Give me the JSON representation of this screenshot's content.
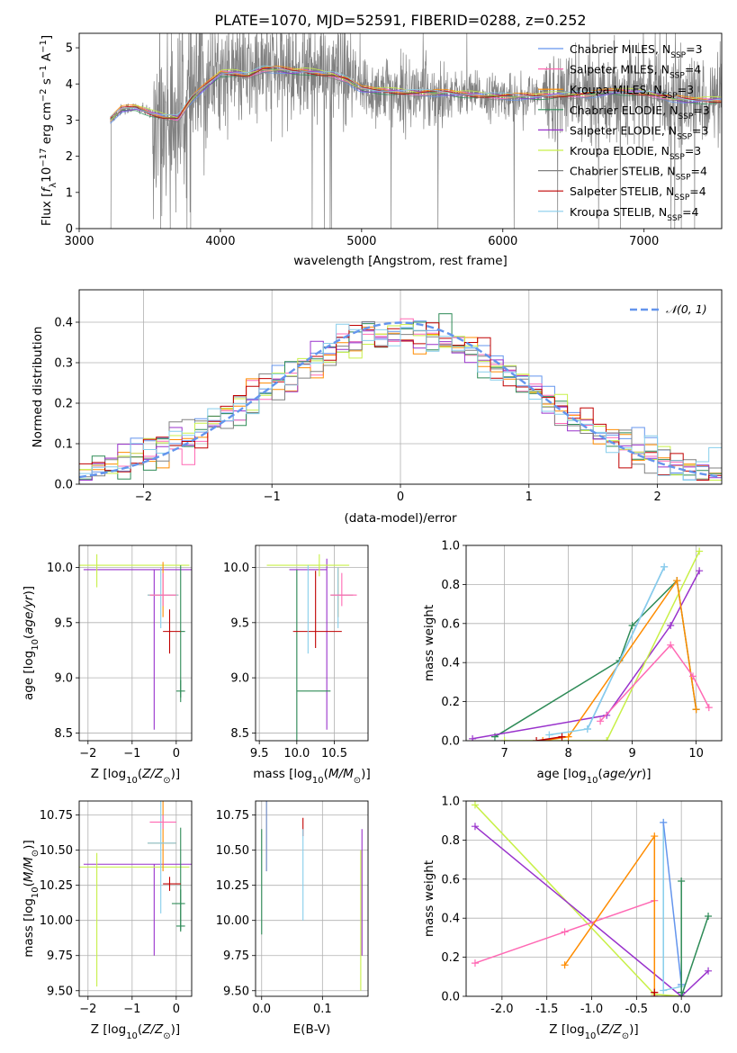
{
  "chart_data": [
    {
      "id": "spectrum",
      "type": "line",
      "title": "PLATE=1070, MJD=52591, FIBERID=0288, z=0.252",
      "xlabel": "wavelength [Angstrom, rest frame]",
      "ylabel": "Flux [f_λ 10^-17 erg cm^-2 s^-1 A^-1]",
      "ylabel_parts": [
        "Flux [",
        "f",
        "λ",
        "10",
        "−17",
        " erg cm",
        "−2",
        " s",
        "−1",
        " A",
        "−1",
        "]"
      ],
      "xlim": [
        3000,
        7550
      ],
      "ylim": [
        0,
        5.4
      ],
      "xticks": [
        3000,
        4000,
        5000,
        6000,
        7000
      ],
      "yticks": [
        0,
        1,
        2,
        3,
        4,
        5
      ],
      "grid": false,
      "legend_position": "right",
      "legend": [
        {
          "name": "Chabrier MILES, N",
          "sub": "SSP",
          "suffix": "=3",
          "color": "#6495ed"
        },
        {
          "name": "Salpeter MILES, N",
          "sub": "SSP",
          "suffix": "=4",
          "color": "#ff69b4"
        },
        {
          "name": "Kroupa MILES, N",
          "sub": "SSP",
          "suffix": "=3",
          "color": "#ff8c00"
        },
        {
          "name": "Chabrier ELODIE, N",
          "sub": "SSP",
          "suffix": "=3",
          "color": "#2e8b57"
        },
        {
          "name": "Salpeter ELODIE, N",
          "sub": "SSP",
          "suffix": "=3",
          "color": "#9932cc"
        },
        {
          "name": "Kroupa ELODIE, N",
          "sub": "SSP",
          "suffix": "=3",
          "color": "#c8f048"
        },
        {
          "name": "Chabrier STELIB, N",
          "sub": "SSP",
          "suffix": "=4",
          "color": "#808080"
        },
        {
          "name": "Salpeter STELIB, N",
          "sub": "SSP",
          "suffix": "=4",
          "color": "#c00000"
        },
        {
          "name": "Kroupa STELIB, N",
          "sub": "SSP",
          "suffix": "=4",
          "color": "#87ceeb"
        }
      ],
      "data_color": "#808080",
      "continuum": {
        "x": [
          3220,
          3300,
          3400,
          3500,
          3600,
          3700,
          3800,
          3900,
          4000,
          4100,
          4200,
          4300,
          4400,
          4500,
          4600,
          4700,
          4800,
          4900,
          5000,
          5200,
          5400,
          5600,
          5800,
          6000,
          6200,
          6400,
          6600,
          6800,
          7000,
          7200,
          7300
        ],
        "y": [
          3.0,
          3.3,
          3.35,
          3.2,
          3.1,
          3.05,
          3.6,
          3.95,
          4.3,
          4.3,
          4.25,
          4.4,
          4.4,
          4.35,
          4.35,
          4.3,
          4.25,
          4.1,
          3.85,
          3.8,
          3.75,
          3.75,
          3.7,
          3.65,
          3.65,
          3.7,
          3.7,
          3.8,
          3.75,
          3.6,
          3.55
        ]
      }
    },
    {
      "id": "residuals",
      "type": "area",
      "xlabel": "(data-model)/error",
      "ylabel": "Normed distribution",
      "xlim": [
        -2.5,
        2.5
      ],
      "ylim": [
        0,
        0.48
      ],
      "xticks": [
        -2,
        -1,
        0,
        1,
        2
      ],
      "yticks": [
        0.0,
        0.1,
        0.2,
        0.3,
        0.4
      ],
      "grid": true,
      "legend_position": "top-right",
      "legend": [
        {
          "name": "𝒩(0, 1)",
          "color": "#6495ed"
        }
      ],
      "bin_width": 0.1,
      "hist_colors": [
        "#6495ed",
        "#ff69b4",
        "#ff8c00",
        "#2e8b57",
        "#9932cc",
        "#c8f048",
        "#808080",
        "#c00000",
        "#87ceeb"
      ]
    },
    {
      "id": "age_vs_Z",
      "type": "scatter",
      "xlabel": "Z [log10(Z/Z⊙)]",
      "ylabel": "age [log10(age/yr)]",
      "xlim": [
        -2.2,
        0.35
      ],
      "ylim": [
        8.43,
        10.2
      ],
      "xticks": [
        -2,
        -1,
        0
      ],
      "yticks": [
        8.5,
        9.0,
        9.5,
        10.0
      ],
      "grid": true,
      "points": [
        {
          "color": "#9932cc",
          "x": -0.5,
          "y": 9.98,
          "xerr": [
            1.6,
            1.1
          ],
          "yerr": [
            1.45,
            0.0
          ]
        },
        {
          "color": "#c8f048",
          "x": -1.8,
          "y": 10.02,
          "xerr": [
            0.5,
            2.1
          ],
          "yerr": [
            0.2,
            0.1
          ]
        },
        {
          "color": "#ff8c00",
          "x": -0.3,
          "y": 9.75,
          "xerr": [
            0.35,
            0.35
          ],
          "yerr": [
            0.2,
            0.3
          ]
        },
        {
          "color": "#87ceeb",
          "x": -0.35,
          "y": 9.75,
          "xerr": [
            0.3,
            0.4
          ],
          "yerr": [
            0.3,
            0.25
          ]
        },
        {
          "color": "#ff69b4",
          "x": -0.3,
          "y": 9.75,
          "xerr": [
            0.3,
            0.3
          ],
          "yerr": [
            0.1,
            0.2
          ]
        },
        {
          "color": "#2e8b57",
          "x": 0.1,
          "y": 8.88,
          "xerr": [
            0.1,
            0.1
          ],
          "yerr": [
            0.1,
            0.1
          ]
        },
        {
          "color": "#2e8b57",
          "x": 0.1,
          "y": 9.42,
          "xerr": [
            0.0,
            0.1
          ],
          "yerr": [
            0.6,
            0.6
          ]
        },
        {
          "color": "#c00000",
          "x": -0.15,
          "y": 9.42,
          "xerr": [
            0.15,
            0.25
          ],
          "yerr": [
            0.2,
            0.2
          ]
        }
      ]
    },
    {
      "id": "age_vs_mass",
      "type": "scatter",
      "xlabel": "mass [log10(M/M⊙)]",
      "xlim": [
        9.45,
        10.95
      ],
      "ylim": [
        8.43,
        10.2
      ],
      "xticks": [
        9.5,
        10.0,
        10.5
      ],
      "yticks": [
        8.5,
        9.0,
        9.5,
        10.0
      ],
      "grid": true,
      "points": [
        {
          "color": "#9932cc",
          "x": 10.4,
          "y": 9.98,
          "xerr": [
            0.5,
            0.0
          ],
          "yerr": [
            1.45,
            0.1
          ]
        },
        {
          "color": "#c8f048",
          "x": 10.3,
          "y": 10.02,
          "xerr": [
            0.7,
            0.4
          ],
          "yerr": [
            0.1,
            0.1
          ]
        },
        {
          "color": "#ff8c00",
          "x": 10.55,
          "y": 9.75,
          "xerr": [
            0.1,
            0.2
          ],
          "yerr": [
            0.2,
            0.25
          ]
        },
        {
          "color": "#87ceeb",
          "x": 10.55,
          "y": 9.75,
          "xerr": [
            0.1,
            0.2
          ],
          "yerr": [
            0.3,
            0.25
          ]
        },
        {
          "color": "#ff69b4",
          "x": 10.6,
          "y": 9.75,
          "xerr": [
            0.15,
            0.2
          ],
          "yerr": [
            0.1,
            0.2
          ]
        },
        {
          "color": "#2e8b57",
          "x": 10.0,
          "y": 8.88,
          "xerr": [
            0.0,
            0.45
          ],
          "yerr": [
            0.6,
            1.1
          ]
        },
        {
          "color": "#c00000",
          "x": 10.25,
          "y": 9.42,
          "xerr": [
            0.3,
            0.35
          ],
          "yerr": [
            0.15,
            0.55
          ]
        },
        {
          "color": "#87ceeb",
          "x": 10.15,
          "y": 9.42,
          "xerr": [
            0.0,
            0.0
          ],
          "yerr": [
            0.2,
            0.6
          ]
        }
      ]
    },
    {
      "id": "weight_vs_age",
      "type": "line",
      "xlabel": "age [log10(age/yr)]",
      "ylabel": "mass weight",
      "xlim": [
        6.4,
        10.4
      ],
      "ylim": [
        0,
        1
      ],
      "xticks": [
        7,
        8,
        9,
        10
      ],
      "yticks": [
        0.0,
        0.2,
        0.4,
        0.6,
        0.8,
        1.0
      ],
      "grid": true,
      "series": [
        {
          "color": "#2e8b57",
          "x": [
            6.85,
            8.8,
            9.0,
            9.7,
            10.0
          ],
          "y": [
            0.02,
            0.41,
            0.59,
            0.82,
            0.16
          ]
        },
        {
          "color": "#9932cc",
          "x": [
            6.5,
            8.6,
            9.6,
            10.05
          ],
          "y": [
            0.01,
            0.13,
            0.59,
            0.87
          ]
        },
        {
          "color": "#c8f048",
          "x": [
            7.0,
            8.6,
            10.05
          ],
          "y": [
            0.0,
            0.0,
            0.97
          ]
        },
        {
          "color": "#ff8c00",
          "x": [
            7.6,
            8.0,
            9.7,
            10.0
          ],
          "y": [
            0.0,
            0.02,
            0.82,
            0.16
          ]
        },
        {
          "color": "#6495ed",
          "x": [
            8.3,
            9.5
          ],
          "y": [
            0.06,
            0.89
          ]
        },
        {
          "color": "#87ceeb",
          "x": [
            7.7,
            8.3,
            9.5
          ],
          "y": [
            0.03,
            0.06,
            0.89
          ]
        },
        {
          "color": "#c00000",
          "x": [
            7.5,
            7.9
          ],
          "y": [
            0.0,
            0.02
          ]
        },
        {
          "color": "#ff69b4",
          "x": [
            8.5,
            9.6,
            9.95,
            10.2
          ],
          "y": [
            0.1,
            0.49,
            0.33,
            0.17
          ]
        }
      ]
    },
    {
      "id": "mass_vs_Z",
      "type": "scatter",
      "xlabel": "Z [log10(Z/Z⊙)]",
      "ylabel": "mass [log10(M/M⊙)]",
      "xlim": [
        -2.2,
        0.35
      ],
      "ylim": [
        9.46,
        10.85
      ],
      "xticks": [
        -2,
        -1,
        0
      ],
      "yticks": [
        9.5,
        9.75,
        10.0,
        10.25,
        10.5,
        10.75
      ],
      "grid": true,
      "points": [
        {
          "color": "#9932cc",
          "x": -0.5,
          "y": 10.4,
          "xerr": [
            1.6,
            1.0
          ],
          "yerr": [
            0.65,
            0.0
          ]
        },
        {
          "color": "#c8f048",
          "x": -1.8,
          "y": 10.38,
          "xerr": [
            0.5,
            2.1
          ],
          "yerr": [
            0.85,
            0.1
          ]
        },
        {
          "color": "#ff8c00",
          "x": -0.3,
          "y": 10.55,
          "xerr": [
            0.35,
            0.3
          ],
          "yerr": [
            0.2,
            0.3
          ]
        },
        {
          "color": "#87ceeb",
          "x": -0.35,
          "y": 10.55,
          "xerr": [
            0.3,
            0.35
          ],
          "yerr": [
            0.5,
            0.3
          ]
        },
        {
          "color": "#ff69b4",
          "x": -0.3,
          "y": 10.7,
          "xerr": [
            0.3,
            0.3
          ],
          "yerr": [
            0.05,
            0.05
          ]
        },
        {
          "color": "#2e8b57",
          "x": 0.1,
          "y": 10.12,
          "xerr": [
            0.2,
            0.1
          ],
          "yerr": [
            0.2,
            0.1
          ]
        },
        {
          "color": "#2e8b57",
          "x": 0.1,
          "y": 9.96,
          "xerr": [
            0.1,
            0.1
          ],
          "yerr": [
            0.03,
            0.7
          ]
        },
        {
          "color": "#c00000",
          "x": -0.15,
          "y": 10.26,
          "xerr": [
            0.15,
            0.25
          ],
          "yerr": [
            0.05,
            0.05
          ]
        }
      ]
    },
    {
      "id": "mass_vs_ebv",
      "type": "scatter",
      "xlabel": "E(B-V)",
      "xlim": [
        -0.01,
        0.175
      ],
      "ylim": [
        9.46,
        10.85
      ],
      "xticks": [
        0.0,
        0.1
      ],
      "yticks": [
        9.5,
        9.75,
        10.0,
        10.25,
        10.5,
        10.75
      ],
      "grid": true,
      "points": [
        {
          "color": "#2e8b57",
          "x": 0.0,
          "y": 10.4,
          "xerr": [
            0,
            0
          ],
          "yerr": [
            0.5,
            0.25
          ]
        },
        {
          "color": "#ff8c00",
          "x": 0.008,
          "y": 10.55,
          "xerr": [
            0,
            0
          ],
          "yerr": [
            0.2,
            0.3
          ]
        },
        {
          "color": "#6495ed",
          "x": 0.008,
          "y": 10.6,
          "xerr": [
            0,
            0
          ],
          "yerr": [
            0.25,
            0.25
          ]
        },
        {
          "color": "#c00000",
          "x": 0.068,
          "y": 10.65,
          "xerr": [
            0,
            0
          ],
          "yerr": [
            0.05,
            0.08
          ]
        },
        {
          "color": "#87ceeb",
          "x": 0.068,
          "y": 10.3,
          "xerr": [
            0,
            0
          ],
          "yerr": [
            0.3,
            0.35
          ]
        },
        {
          "color": "#9932cc",
          "x": 0.165,
          "y": 10.2,
          "xerr": [
            0,
            0
          ],
          "yerr": [
            0.45,
            0.45
          ]
        },
        {
          "color": "#c8f048",
          "x": 0.163,
          "y": 10.0,
          "xerr": [
            0,
            0
          ],
          "yerr": [
            0.5,
            0.5
          ]
        }
      ]
    },
    {
      "id": "weight_vs_Z",
      "type": "line",
      "xlabel": "Z [log10(Z/Z⊙)]",
      "ylabel": "mass weight",
      "xlim": [
        -2.4,
        0.45
      ],
      "ylim": [
        0,
        1
      ],
      "xticks": [
        -2.0,
        -1.5,
        -1.0,
        -0.5,
        0.0
      ],
      "yticks": [
        0.0,
        0.2,
        0.4,
        0.6,
        0.8,
        1.0
      ],
      "grid": true,
      "series": [
        {
          "color": "#c8f048",
          "x": [
            -2.3,
            -0.3,
            0.0
          ],
          "y": [
            0.98,
            0.01,
            0.0
          ]
        },
        {
          "color": "#9932cc",
          "x": [
            -2.3,
            0.0,
            0.3
          ],
          "y": [
            0.87,
            0.0,
            0.13
          ]
        },
        {
          "color": "#ff69b4",
          "x": [
            -2.3,
            -1.3,
            -0.3
          ],
          "y": [
            0.17,
            0.33,
            0.49
          ]
        },
        {
          "color": "#ff8c00",
          "x": [
            -1.3,
            -0.3,
            -0.3
          ],
          "y": [
            0.16,
            0.82,
            0.02
          ]
        },
        {
          "color": "#87ceeb",
          "x": [
            -0.2,
            -0.2,
            0.0,
            0.0
          ],
          "y": [
            0.89,
            0.03,
            0.05,
            0.06
          ]
        },
        {
          "color": "#6495ed",
          "x": [
            -0.2,
            0.0
          ],
          "y": [
            0.89,
            0.06
          ]
        },
        {
          "color": "#2e8b57",
          "x": [
            0.0,
            0.0,
            0.0,
            0.3
          ],
          "y": [
            0.59,
            0.02,
            0.0,
            0.41
          ]
        },
        {
          "color": "#c00000",
          "x": [
            -0.3,
            -0.3
          ],
          "y": [
            0.0,
            0.02
          ]
        }
      ]
    }
  ]
}
